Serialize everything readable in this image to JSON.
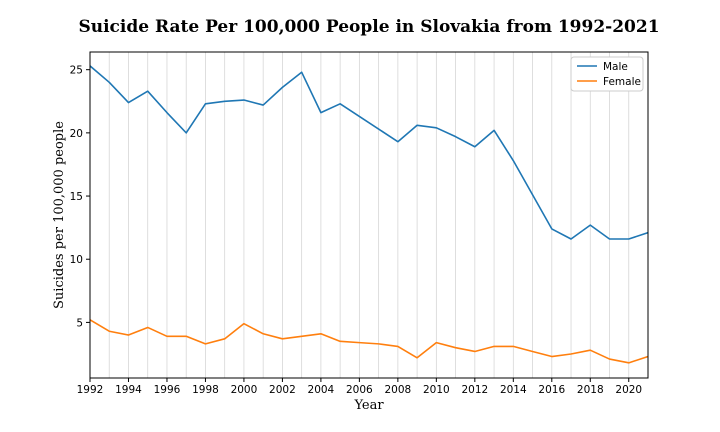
{
  "chart_data": {
    "type": "line",
    "title": "Suicide Rate Per 100,000 People in Slovakia from 1992-2021",
    "xlabel": "Year",
    "ylabel": "Suicides per 100,000 people",
    "xlim": [
      1992,
      2021
    ],
    "ylim": [
      0.6,
      26.4
    ],
    "x": [
      1992,
      1993,
      1994,
      1995,
      1996,
      1997,
      1998,
      1999,
      2000,
      2001,
      2002,
      2003,
      2004,
      2005,
      2006,
      2007,
      2008,
      2009,
      2010,
      2011,
      2012,
      2013,
      2014,
      2015,
      2016,
      2017,
      2018,
      2019,
      2020,
      2021
    ],
    "x_ticks": [
      "1992",
      "1994",
      "1996",
      "1998",
      "2000",
      "2002",
      "2004",
      "2006",
      "2008",
      "2010",
      "2012",
      "2014",
      "2016",
      "2018",
      "2020"
    ],
    "y_ticks": [
      "5",
      "10",
      "15",
      "20",
      "25"
    ],
    "grid": "vertical",
    "legend_position": "top-right",
    "series": [
      {
        "name": "Male",
        "color": "#1f77b4",
        "values": [
          25.3,
          24.0,
          22.4,
          23.3,
          21.6,
          20.0,
          22.3,
          22.5,
          22.6,
          22.2,
          23.6,
          24.8,
          21.6,
          22.3,
          21.3,
          20.3,
          19.3,
          20.6,
          20.4,
          19.7,
          18.9,
          20.2,
          17.8,
          15.1,
          12.4,
          11.6,
          12.7,
          11.6,
          11.6,
          12.1
        ]
      },
      {
        "name": "Female",
        "color": "#ff7f0e",
        "values": [
          5.2,
          4.3,
          4.0,
          4.6,
          3.9,
          3.9,
          3.3,
          3.7,
          4.9,
          4.1,
          3.7,
          3.9,
          4.1,
          3.5,
          3.4,
          3.3,
          3.1,
          2.2,
          3.4,
          3.0,
          2.7,
          3.1,
          3.1,
          2.7,
          2.3,
          2.5,
          2.8,
          2.1,
          1.8,
          2.3
        ]
      }
    ]
  }
}
